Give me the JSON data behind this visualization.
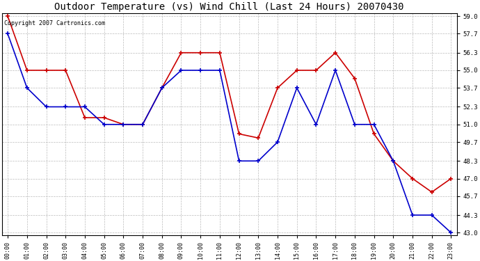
{
  "title": "Outdoor Temperature (vs) Wind Chill (Last 24 Hours) 20070430",
  "copyright_text": "Copyright 2007 Cartronics.com",
  "x_labels": [
    "00:00",
    "01:00",
    "02:00",
    "03:00",
    "04:00",
    "05:00",
    "06:00",
    "07:00",
    "08:00",
    "09:00",
    "10:00",
    "11:00",
    "12:00",
    "13:00",
    "14:00",
    "15:00",
    "16:00",
    "17:00",
    "18:00",
    "19:00",
    "20:00",
    "21:00",
    "22:00",
    "23:00"
  ],
  "red_data": [
    59.0,
    55.0,
    55.0,
    55.0,
    51.5,
    51.5,
    51.0,
    51.0,
    53.7,
    56.3,
    56.3,
    56.3,
    50.3,
    50.0,
    53.7,
    55.0,
    55.0,
    56.3,
    54.4,
    50.3,
    48.3,
    47.0,
    46.0,
    47.0
  ],
  "blue_data": [
    57.7,
    53.7,
    52.3,
    52.3,
    52.3,
    51.0,
    51.0,
    51.0,
    53.7,
    55.0,
    55.0,
    55.0,
    48.3,
    48.3,
    49.7,
    53.7,
    51.0,
    55.0,
    51.0,
    51.0,
    48.3,
    44.3,
    44.3,
    43.0
  ],
  "yticks": [
    43.0,
    44.3,
    45.7,
    47.0,
    48.3,
    49.7,
    51.0,
    52.3,
    53.7,
    55.0,
    56.3,
    57.7,
    59.0
  ],
  "red_color": "#cc0000",
  "blue_color": "#0000cc",
  "bg_color": "#ffffff",
  "grid_color": "#bbbbbb",
  "title_fontsize": 10,
  "copyright_fontsize": 6
}
